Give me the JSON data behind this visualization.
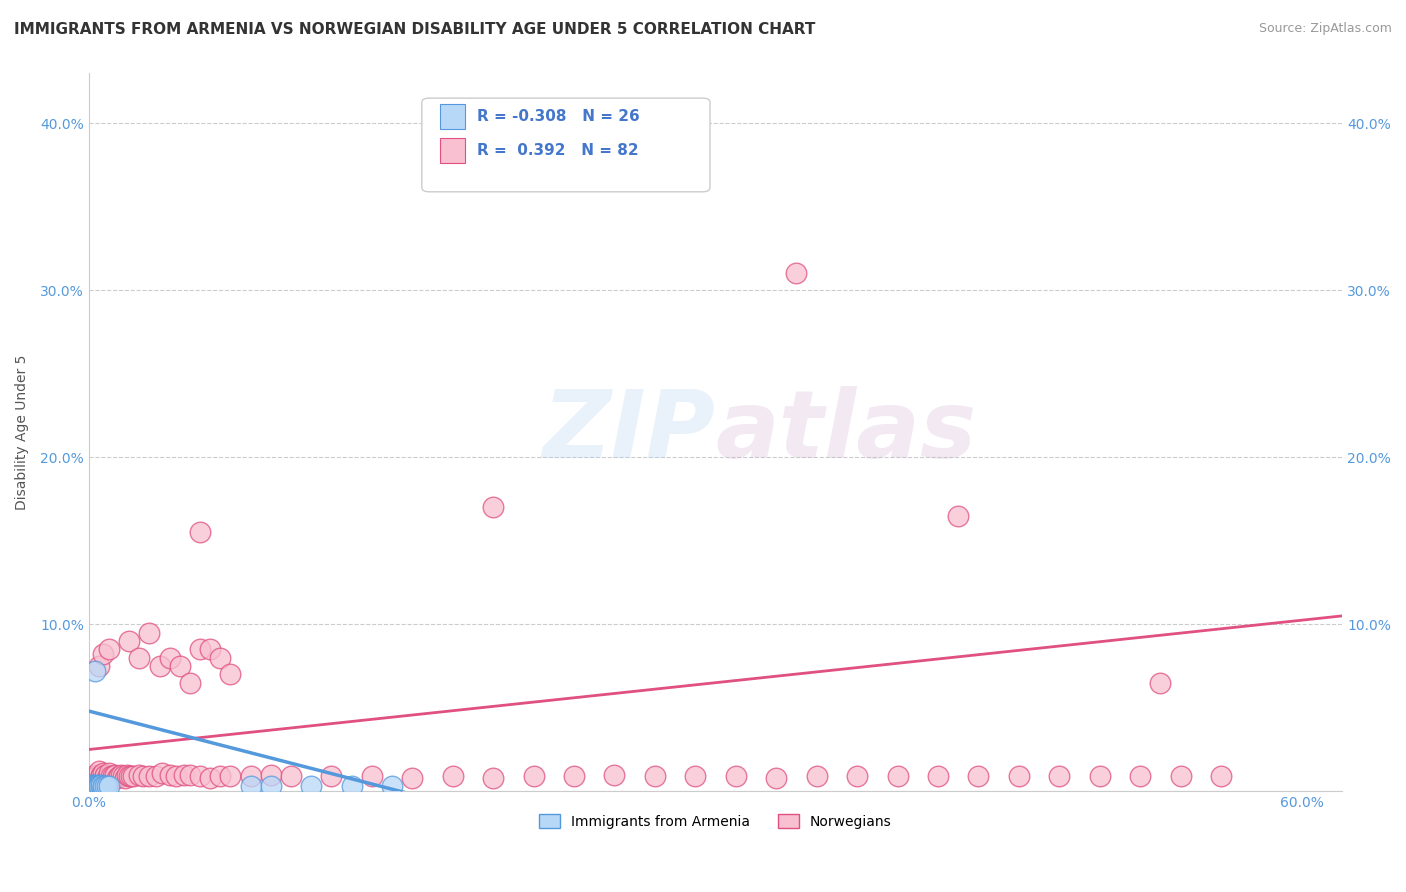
{
  "title": "IMMIGRANTS FROM ARMENIA VS NORWEGIAN DISABILITY AGE UNDER 5 CORRELATION CHART",
  "source": "Source: ZipAtlas.com",
  "ylabel_label": "Disability Age Under 5",
  "xlim": [
    0.0,
    0.62
  ],
  "ylim": [
    0.0,
    0.43
  ],
  "color_armenia": "#b8d8f8",
  "color_armenia_line": "#5599dd",
  "color_norway": "#f8c0d0",
  "color_norway_line": "#e05080",
  "background_color": "#ffffff",
  "grid_color": "#cccccc",
  "title_fontsize": 11,
  "axis_label_fontsize": 10,
  "tick_fontsize": 10,
  "nor_trend_x0": 0.0,
  "nor_trend_y0": 0.025,
  "nor_trend_x1": 0.62,
  "nor_trend_y1": 0.105,
  "arm_trend_x0": 0.0,
  "arm_trend_y0": 0.048,
  "arm_trend_x1": 0.17,
  "arm_trend_y1": -0.005,
  "nor_x": [
    0.002,
    0.003,
    0.004,
    0.005,
    0.005,
    0.006,
    0.006,
    0.007,
    0.007,
    0.008,
    0.008,
    0.009,
    0.01,
    0.01,
    0.011,
    0.012,
    0.013,
    0.014,
    0.015,
    0.016,
    0.017,
    0.018,
    0.019,
    0.02,
    0.021,
    0.022,
    0.025,
    0.027,
    0.03,
    0.033,
    0.036,
    0.04,
    0.043,
    0.047,
    0.05,
    0.055,
    0.06,
    0.065,
    0.07,
    0.08,
    0.09,
    0.1,
    0.12,
    0.14,
    0.16,
    0.18,
    0.2,
    0.22,
    0.24,
    0.26,
    0.28,
    0.3,
    0.32,
    0.34,
    0.36,
    0.38,
    0.4,
    0.42,
    0.44,
    0.46,
    0.48,
    0.5,
    0.52,
    0.54,
    0.56,
    0.01,
    0.02,
    0.025,
    0.03,
    0.035,
    0.04,
    0.045,
    0.05,
    0.055,
    0.06,
    0.065,
    0.07,
    0.35,
    0.43,
    0.53,
    0.055,
    0.2
  ],
  "nor_y": [
    0.008,
    0.01,
    0.009,
    0.075,
    0.012,
    0.009,
    0.01,
    0.082,
    0.011,
    0.009,
    0.01,
    0.008,
    0.009,
    0.011,
    0.009,
    0.009,
    0.01,
    0.008,
    0.009,
    0.01,
    0.009,
    0.008,
    0.01,
    0.009,
    0.009,
    0.009,
    0.01,
    0.009,
    0.009,
    0.009,
    0.011,
    0.01,
    0.009,
    0.01,
    0.01,
    0.009,
    0.008,
    0.009,
    0.009,
    0.009,
    0.01,
    0.009,
    0.009,
    0.009,
    0.008,
    0.009,
    0.008,
    0.009,
    0.009,
    0.01,
    0.009,
    0.009,
    0.009,
    0.008,
    0.009,
    0.009,
    0.009,
    0.009,
    0.009,
    0.009,
    0.009,
    0.009,
    0.009,
    0.009,
    0.009,
    0.085,
    0.09,
    0.08,
    0.095,
    0.075,
    0.08,
    0.075,
    0.065,
    0.085,
    0.085,
    0.08,
    0.07,
    0.31,
    0.165,
    0.065,
    0.155,
    0.17
  ],
  "arm_x": [
    0.001,
    0.001,
    0.002,
    0.002,
    0.002,
    0.003,
    0.003,
    0.003,
    0.004,
    0.004,
    0.005,
    0.005,
    0.005,
    0.006,
    0.006,
    0.007,
    0.007,
    0.008,
    0.009,
    0.01,
    0.003,
    0.08,
    0.09,
    0.11,
    0.13,
    0.15
  ],
  "arm_y": [
    0.004,
    0.003,
    0.003,
    0.004,
    0.003,
    0.003,
    0.004,
    0.003,
    0.003,
    0.003,
    0.003,
    0.004,
    0.003,
    0.003,
    0.004,
    0.003,
    0.003,
    0.003,
    0.003,
    0.003,
    0.072,
    0.003,
    0.003,
    0.003,
    0.003,
    0.003
  ]
}
